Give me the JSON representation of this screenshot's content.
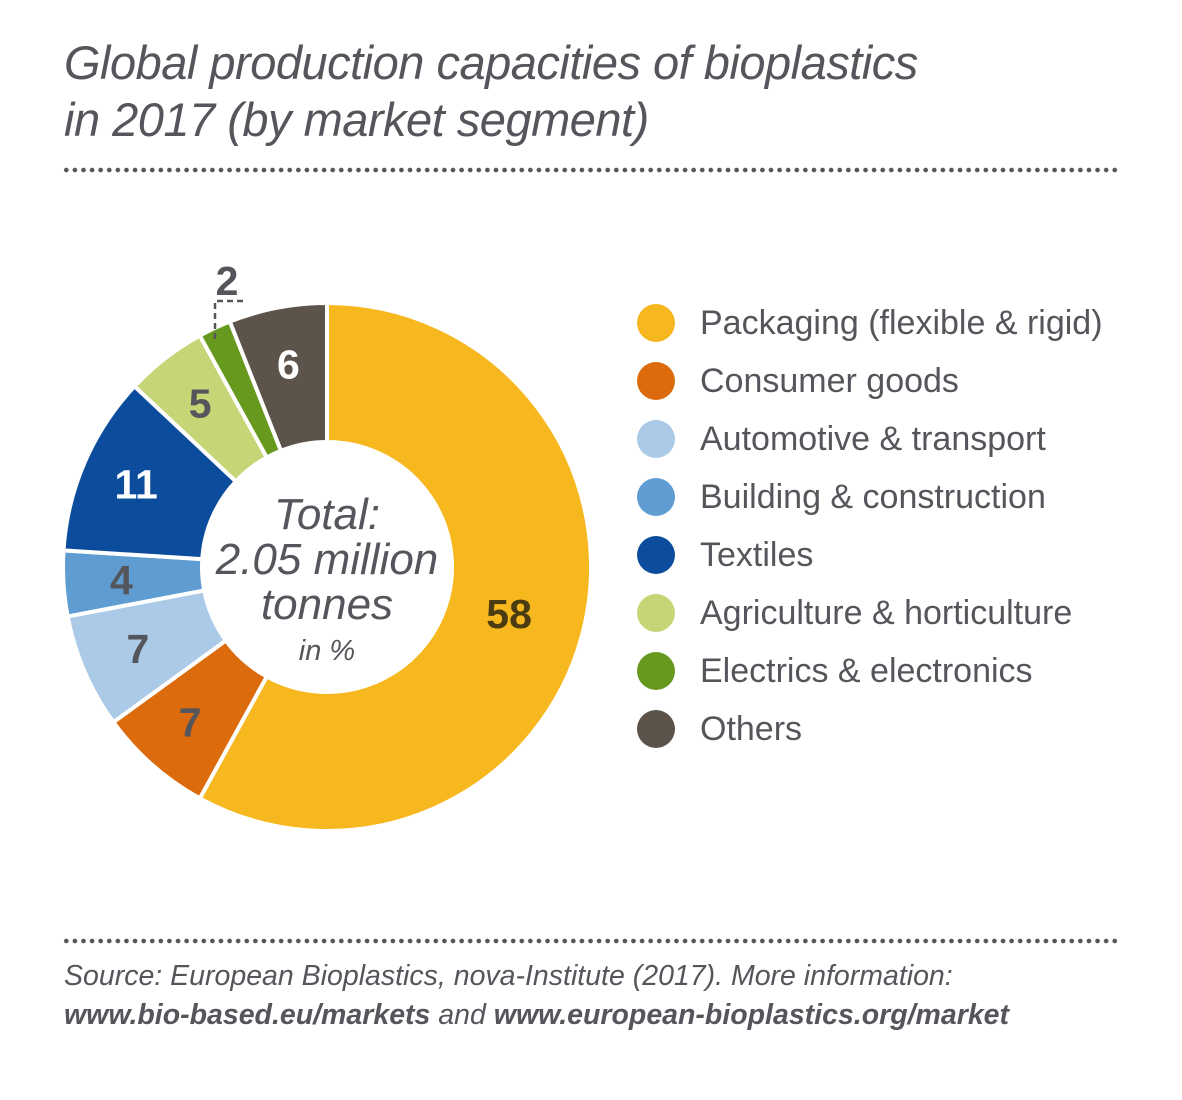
{
  "title": {
    "line1": "Global production capacities of bioplastics",
    "line2": "in 2017 (by market segment)"
  },
  "donut_center": {
    "line1": "Total:",
    "line2": "2.05 million",
    "line3": "tonnes",
    "note": "in %"
  },
  "chart_data": {
    "type": "pie",
    "subtype": "donut",
    "title": "Global production capacities of bioplastics in 2017 (by market segment)",
    "unit": "%",
    "total_label": "Total: 2.05 million tonnes",
    "start_angle": "12 o'clock",
    "direction": "clockwise",
    "legend_position": "right",
    "segments": [
      {
        "label": "Packaging (flexible & rigid)",
        "value": 58,
        "color": "#F7B71E",
        "value_color": "#4A3C10",
        "label_radius": 188
      },
      {
        "label": "Consumer goods",
        "value": 7,
        "color": "#DC6B0D",
        "value_color": "#54565B",
        "label_radius": 207
      },
      {
        "label": "Automotive & transport",
        "value": 7,
        "color": "#ABCAE8",
        "value_color": "#54565B",
        "label_radius": 206
      },
      {
        "label": "Building & construction",
        "value": 4,
        "color": "#5F9CD2",
        "value_color": "#54565B",
        "label_radius": 206
      },
      {
        "label": "Textiles",
        "value": 11,
        "color": "#0C4C9C",
        "value_color": "#FFFFFF",
        "label_radius": 208
      },
      {
        "label": "Agriculture & horticulture",
        "value": 5,
        "color": "#C6D676",
        "value_color": "#54565B",
        "label_radius": 207
      },
      {
        "label": "Electrics & electronics",
        "value": 2,
        "color": "#67991F",
        "value_color": "#54565B",
        "external_label": true
      },
      {
        "label": "Others",
        "value": 6,
        "color": "#5C534A",
        "value_color": "#FFFFFF",
        "label_radius": 206
      }
    ]
  },
  "footer": {
    "line1": "Source: European Bioplastics, nova-Institute (2017). More information:",
    "link1": "www.bio-based.eu/markets",
    "conjunction": " and ",
    "link2": "www.european-bioplastics.org/market"
  },
  "colors": {
    "text": "#54565B",
    "background": "#FFFFFF"
  }
}
